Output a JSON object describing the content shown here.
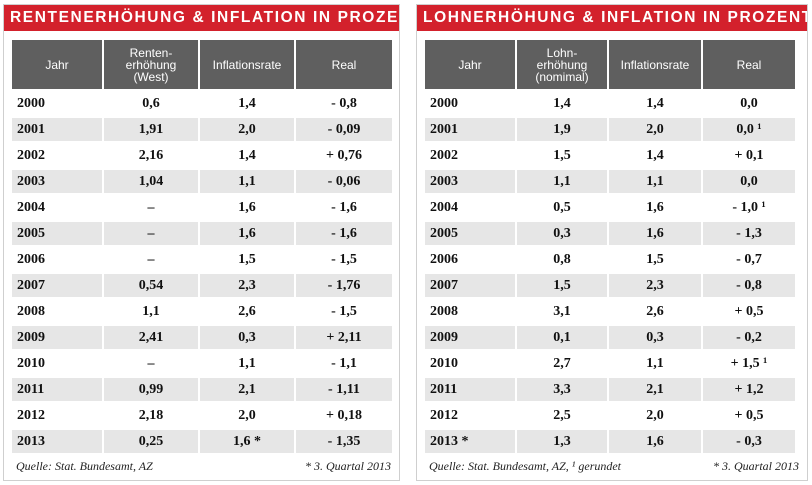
{
  "left": {
    "title": "RENTENERHÖHUNG & INFLATION IN PROZENT",
    "headers": [
      "Jahr",
      "Renten-\nerhöhung\n(West)",
      "Inflationsrate",
      "Real"
    ],
    "rows": [
      [
        "2000",
        "0,6",
        "1,4",
        "- 0,8"
      ],
      [
        "2001",
        "1,91",
        "2,0",
        "- 0,09"
      ],
      [
        "2002",
        "2,16",
        "1,4",
        "+ 0,76"
      ],
      [
        "2003",
        "1,04",
        "1,1",
        "- 0,06"
      ],
      [
        "2004",
        "–",
        "1,6",
        "- 1,6"
      ],
      [
        "2005",
        "–",
        "1,6",
        "- 1,6"
      ],
      [
        "2006",
        "–",
        "1,5",
        "- 1,5"
      ],
      [
        "2007",
        "0,54",
        "2,3",
        "- 1,76"
      ],
      [
        "2008",
        "1,1",
        "2,6",
        "- 1,5"
      ],
      [
        "2009",
        "2,41",
        "0,3",
        "+ 2,11"
      ],
      [
        "2010",
        "–",
        "1,1",
        "- 1,1"
      ],
      [
        "2011",
        "0,99",
        "2,1",
        "- 1,11"
      ],
      [
        "2012",
        "2,18",
        "2,0",
        "+ 0,18"
      ],
      [
        "2013",
        "0,25",
        "1,6 *",
        "- 1,35"
      ]
    ],
    "source": "Quelle: Stat. Bundesamt, AZ",
    "note": "* 3. Quartal 2013"
  },
  "right": {
    "title": "LOHNERHÖHUNG & INFLATION IN PROZENT",
    "headers": [
      "Jahr",
      "Lohn-\nerhöhung\n(nomimal)",
      "Inflationsrate",
      "Real"
    ],
    "rows": [
      [
        "2000",
        "1,4",
        "1,4",
        "0,0"
      ],
      [
        "2001",
        "1,9",
        "2,0",
        "0,0 ¹"
      ],
      [
        "2002",
        "1,5",
        "1,4",
        "+ 0,1"
      ],
      [
        "2003",
        "1,1",
        "1,1",
        "0,0"
      ],
      [
        "2004",
        "0,5",
        "1,6",
        "- 1,0 ¹"
      ],
      [
        "2005",
        "0,3",
        "1,6",
        "- 1,3"
      ],
      [
        "2006",
        "0,8",
        "1,5",
        "- 0,7"
      ],
      [
        "2007",
        "1,5",
        "2,3",
        "- 0,8"
      ],
      [
        "2008",
        "3,1",
        "2,6",
        "+ 0,5"
      ],
      [
        "2009",
        "0,1",
        "0,3",
        "- 0,2"
      ],
      [
        "2010",
        "2,7",
        "1,1",
        "+ 1,5 ¹"
      ],
      [
        "2011",
        "3,3",
        "2,1",
        "+ 1,2"
      ],
      [
        "2012",
        "2,5",
        "2,0",
        "+ 0,5"
      ],
      [
        "2013 *",
        "1,3",
        "1,6",
        "- 0,3"
      ]
    ],
    "source": "Quelle: Stat. Bundesamt, AZ, ¹ gerundet",
    "note": "* 3. Quartal 2013"
  },
  "colors": {
    "title_bg": "#d3212c",
    "header_bg": "#5f5f5f",
    "stripe": "#e6e6e6"
  }
}
